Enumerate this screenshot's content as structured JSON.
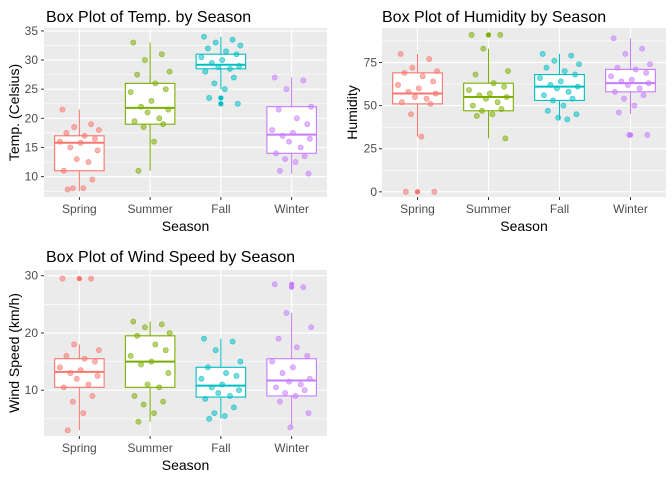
{
  "chart_data": [
    {
      "type": "boxplot",
      "title": "Box Plot of Temp. by Season",
      "xlabel": "Season",
      "ylabel": "Temp. (Celsius)",
      "ylim": [
        6.5,
        35.5
      ],
      "yticks": [
        10,
        15,
        20,
        25,
        30,
        35
      ],
      "categories": [
        "Spring",
        "Summer",
        "Fall",
        "Winter"
      ],
      "colors": [
        "#F8766D",
        "#7CAE00",
        "#00BFC4",
        "#C77CFF"
      ],
      "grid": true,
      "series": [
        {
          "category": "Spring",
          "box": {
            "q1": 11,
            "median": 15.8,
            "q3": 17,
            "whisker_low": 7.5,
            "whisker_high": 21.5,
            "outliers": []
          },
          "points": [
            21.5,
            19,
            18.5,
            18,
            17.5,
            17,
            16.5,
            16,
            15.8,
            15,
            14.5,
            13,
            12.5,
            11,
            9.5,
            8,
            8,
            7.8
          ]
        },
        {
          "category": "Summer",
          "box": {
            "q1": 19,
            "median": 21.8,
            "q3": 26,
            "whisker_low": 11,
            "whisker_high": 33,
            "outliers": []
          },
          "points": [
            33,
            31,
            30,
            28,
            27.5,
            26,
            25,
            24.5,
            23,
            22,
            21.5,
            21,
            20,
            19.5,
            19,
            18.5,
            16,
            11
          ]
        },
        {
          "category": "Fall",
          "box": {
            "q1": 28.5,
            "median": 29.2,
            "q3": 31,
            "whisker_low": 25,
            "whisker_high": 34,
            "outliers": [
              23.5,
              22.5
            ]
          },
          "points": [
            34,
            33.5,
            33,
            32.5,
            32,
            31.5,
            31,
            30.5,
            30,
            29.5,
            29,
            28.8,
            28.5,
            28,
            27,
            26,
            25,
            23.5,
            22.5
          ]
        },
        {
          "category": "Winter",
          "box": {
            "q1": 14,
            "median": 17.2,
            "q3": 22,
            "whisker_low": 10.5,
            "whisker_high": 27,
            "outliers": []
          },
          "points": [
            27,
            26.5,
            25,
            22,
            21.5,
            20,
            19,
            18,
            17.5,
            17,
            16.5,
            16,
            15,
            14,
            13.5,
            13,
            12.5,
            11,
            10.5
          ]
        }
      ]
    },
    {
      "type": "boxplot",
      "title": "Box Plot of Humidity by Season",
      "xlabel": "Season",
      "ylabel": "Humidity",
      "ylim": [
        -3,
        95
      ],
      "yticks": [
        0,
        25,
        50,
        75
      ],
      "categories": [
        "Spring",
        "Summer",
        "Fall",
        "Winter"
      ],
      "colors": [
        "#F8766D",
        "#7CAE00",
        "#00BFC4",
        "#C77CFF"
      ],
      "grid": true,
      "series": [
        {
          "category": "Spring",
          "box": {
            "q1": 51,
            "median": 57,
            "q3": 69,
            "whisker_low": 32,
            "whisker_high": 80,
            "outliers": [
              0,
              0
            ]
          },
          "points": [
            80,
            77,
            72,
            70,
            69,
            67,
            64,
            62,
            60,
            58,
            57,
            55,
            54,
            52,
            51,
            45,
            32,
            0,
            0
          ]
        },
        {
          "category": "Summer",
          "box": {
            "q1": 47,
            "median": 55,
            "q3": 63,
            "whisker_low": 31,
            "whisker_high": 83,
            "outliers": [
              91
            ]
          },
          "points": [
            91,
            91,
            83,
            70,
            68,
            63,
            61,
            59,
            57,
            56,
            55,
            54,
            52,
            50,
            48,
            47,
            45,
            44,
            31
          ]
        },
        {
          "category": "Fall",
          "box": {
            "q1": 53,
            "median": 61,
            "q3": 68,
            "whisker_low": 42,
            "whisker_high": 80,
            "outliers": []
          },
          "points": [
            80,
            79,
            76,
            74,
            72,
            70,
            68,
            66,
            64,
            62,
            61,
            60,
            58,
            56,
            54,
            53,
            50,
            47,
            45,
            43,
            42
          ]
        },
        {
          "category": "Winter",
          "box": {
            "q1": 58,
            "median": 63,
            "q3": 71,
            "whisker_low": 45,
            "whisker_high": 89,
            "outliers": [
              33,
              33
            ]
          },
          "points": [
            89,
            83,
            80,
            74,
            72,
            71,
            69,
            67,
            65,
            64,
            63,
            62,
            60,
            58,
            56,
            54,
            50,
            46,
            33,
            33
          ]
        }
      ]
    },
    {
      "type": "boxplot",
      "title": "Box Plot of Wind Speed by Season",
      "xlabel": "Season",
      "ylabel": "Wind Speed (km/h)",
      "ylim": [
        2,
        31
      ],
      "yticks": [
        10,
        20,
        30
      ],
      "categories": [
        "Spring",
        "Summer",
        "Fall",
        "Winter"
      ],
      "colors": [
        "#F8766D",
        "#7CAE00",
        "#00BFC4",
        "#C77CFF"
      ],
      "grid": true,
      "series": [
        {
          "category": "Spring",
          "box": {
            "q1": 10.5,
            "median": 13.2,
            "q3": 15.5,
            "whisker_low": 3,
            "whisker_high": 18,
            "outliers": [
              29.5,
              29.5
            ]
          },
          "points": [
            29.5,
            29.5,
            18,
            17,
            16,
            15.5,
            15,
            14,
            13.5,
            13,
            12.5,
            12,
            11,
            10.5,
            9,
            8,
            6,
            3
          ]
        },
        {
          "category": "Summer",
          "box": {
            "q1": 10.5,
            "median": 15,
            "q3": 19.5,
            "whisker_low": 4.5,
            "whisker_high": 22,
            "outliers": []
          },
          "points": [
            22,
            21.5,
            21,
            20,
            19.5,
            18,
            17,
            16,
            15,
            14.5,
            13,
            11,
            10.5,
            9,
            8,
            7.5,
            6,
            4.5
          ]
        },
        {
          "category": "Fall",
          "box": {
            "q1": 8.8,
            "median": 10.8,
            "q3": 14,
            "whisker_low": 5,
            "whisker_high": 19,
            "outliers": []
          },
          "points": [
            19,
            18.5,
            17,
            15,
            14,
            13,
            12.5,
            12,
            11,
            10.5,
            10,
            9.5,
            9,
            8.5,
            7,
            6,
            5.5,
            5
          ]
        },
        {
          "category": "Winter",
          "box": {
            "q1": 9,
            "median": 11.7,
            "q3": 15.5,
            "whisker_low": 3.5,
            "whisker_high": 23.5,
            "outliers": [
              28.5,
              28
            ]
          },
          "points": [
            28.5,
            28,
            23.5,
            21,
            19,
            17.5,
            16,
            15,
            14,
            13,
            12,
            11.5,
            11,
            10.5,
            10,
            9.5,
            9,
            8,
            6,
            3.5
          ]
        }
      ]
    }
  ]
}
